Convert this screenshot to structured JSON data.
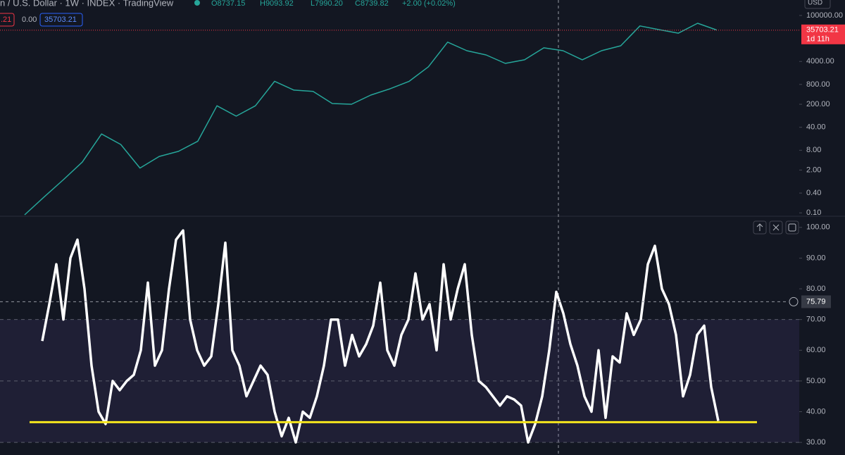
{
  "header": {
    "symbol": "n / U.S. Dollar · 1W · INDEX · TradingView",
    "open": "O8737.15",
    "high": "H9093.92",
    "low": "L7990.20",
    "close": "C8739.82",
    "change": "+2.00 (+0.02%)",
    "field_a": ".21",
    "field_b": "0.00",
    "field_c": "35703.21"
  },
  "chart_data": [
    {
      "type": "line",
      "scale": "log",
      "color": "#26a69a",
      "currency": "USD",
      "countdown": "1d 11h",
      "last_price": {
        "value": 35703.21,
        "label": "35703.21"
      },
      "last_price_color": "#f23645",
      "values": [
        0.087,
        0.3,
        1.0,
        3.5,
        25,
        12,
        2.3,
        5.2,
        7.4,
        15,
        180,
        87,
        180,
        1000,
        540,
        490,
        210,
        200,
        380,
        590,
        1000,
        2750,
        15500,
        8500,
        6300,
        3500,
        4500,
        10400,
        8500,
        4500,
        8500,
        12000,
        48000,
        37000,
        29000,
        58000,
        36000
      ],
      "ylim": [
        0.083,
        295000
      ],
      "yticks": [
        {
          "value": 100000,
          "label": "100000.00"
        },
        {
          "value": 4000,
          "label": "4000.00"
        },
        {
          "value": 800,
          "label": "800.00"
        },
        {
          "value": 200,
          "label": "200.00"
        },
        {
          "value": 40,
          "label": "40.00"
        },
        {
          "value": 8,
          "label": "8.00"
        },
        {
          "value": 2,
          "label": "2.00"
        },
        {
          "value": 0.4,
          "label": "0.40"
        },
        {
          "value": 0.1,
          "label": "0.10"
        }
      ]
    },
    {
      "type": "line",
      "color": "#ffffff",
      "values": [
        63,
        75,
        88,
        70,
        90,
        96,
        80,
        55,
        40,
        36,
        50,
        47,
        50,
        52,
        60,
        82,
        55,
        60,
        80,
        96,
        99,
        70,
        60,
        55,
        58,
        75,
        95,
        60,
        55,
        45,
        50,
        55,
        52,
        40,
        32,
        38,
        30,
        40,
        38,
        45,
        55,
        70,
        70,
        55,
        65,
        58,
        62,
        68,
        82,
        60,
        55,
        65,
        70,
        85,
        70,
        75,
        60,
        88,
        70,
        80,
        88,
        65,
        50,
        48,
        45,
        42,
        45,
        44,
        42,
        30,
        36,
        45,
        60,
        79,
        72,
        62,
        55,
        45,
        40,
        60,
        38,
        58,
        56,
        72,
        65,
        70,
        88,
        94,
        80,
        75,
        65,
        45,
        52,
        65,
        68,
        48,
        37
      ],
      "ylim": [
        25.9,
        103.4
      ],
      "yticks": [
        {
          "value": 100,
          "label": "100.00"
        },
        {
          "value": 90,
          "label": "90.00"
        },
        {
          "value": 80,
          "label": "80.00"
        },
        {
          "value": 70,
          "label": "70.00"
        },
        {
          "value": 60,
          "label": "60.00"
        },
        {
          "value": 50,
          "label": "50.00"
        },
        {
          "value": 40,
          "label": "40.00"
        },
        {
          "value": 30,
          "label": "30.00"
        }
      ],
      "band": [
        30,
        70
      ],
      "level_lines": [
        70,
        50,
        30
      ],
      "threshold": 36.6,
      "threshold_color": "#f5e51d",
      "crosshair": 75.79
    }
  ]
}
